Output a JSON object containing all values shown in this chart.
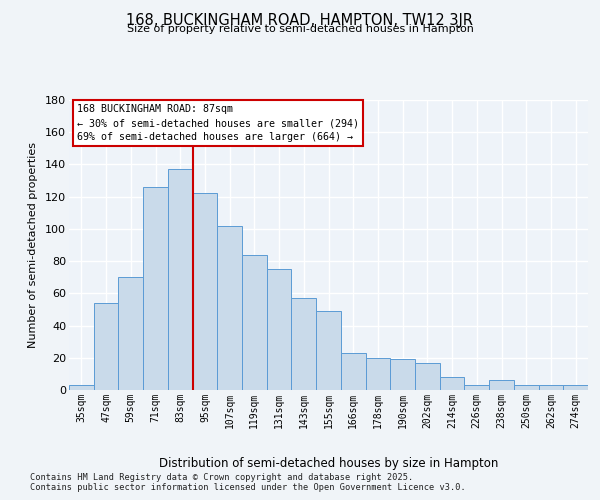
{
  "title": "168, BUCKINGHAM ROAD, HAMPTON, TW12 3JR",
  "subtitle": "Size of property relative to semi-detached houses in Hampton",
  "xlabel": "Distribution of semi-detached houses by size in Hampton",
  "ylabel": "Number of semi-detached properties",
  "bar_labels": [
    "35sqm",
    "47sqm",
    "59sqm",
    "71sqm",
    "83sqm",
    "95sqm",
    "107sqm",
    "119sqm",
    "131sqm",
    "143sqm",
    "155sqm",
    "166sqm",
    "178sqm",
    "190sqm",
    "202sqm",
    "214sqm",
    "226sqm",
    "238sqm",
    "250sqm",
    "262sqm",
    "274sqm"
  ],
  "bar_values": [
    3,
    54,
    70,
    126,
    137,
    122,
    102,
    84,
    75,
    57,
    49,
    23,
    20,
    19,
    17,
    8,
    3,
    6,
    3,
    3,
    3
  ],
  "bar_color": "#c9daea",
  "bar_edge_color": "#5b9bd5",
  "background_color": "#eef3f9",
  "grid_color": "#ffffff",
  "vline_index": 4,
  "vline_color": "#cc0000",
  "annotation_title": "168 BUCKINGHAM ROAD: 87sqm",
  "annotation_line1": "← 30% of semi-detached houses are smaller (294)",
  "annotation_line2": "69% of semi-detached houses are larger (664) →",
  "annotation_box_color": "#ffffff",
  "annotation_box_edge": "#cc0000",
  "ylim": [
    0,
    180
  ],
  "yticks": [
    0,
    20,
    40,
    60,
    80,
    100,
    120,
    140,
    160,
    180
  ],
  "footer_line1": "Contains HM Land Registry data © Crown copyright and database right 2025.",
  "footer_line2": "Contains public sector information licensed under the Open Government Licence v3.0."
}
